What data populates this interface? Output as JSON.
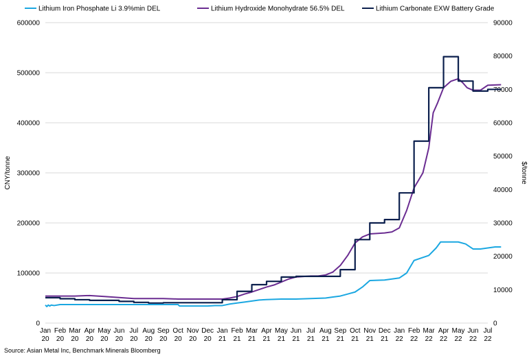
{
  "source_note": "Source: Asian Metal Inc, Benchmark Minerals Bloomberg",
  "chart_data": {
    "type": "line",
    "grid": true,
    "legend_placement": "top",
    "ylabel_left": "CNY/tonne",
    "ylabel_right": "$/tonne",
    "ylim_left": [
      0,
      600000
    ],
    "ylim_right": [
      0,
      90000
    ],
    "y_ticks_left": [
      0,
      100000,
      200000,
      300000,
      400000,
      500000,
      600000
    ],
    "y_ticks_right": [
      0,
      10000,
      20000,
      30000,
      40000,
      50000,
      60000,
      70000,
      80000,
      90000
    ],
    "x_tick_labels": [
      [
        "Jan",
        "20"
      ],
      [
        "Feb",
        "20"
      ],
      [
        "Mar",
        "20"
      ],
      [
        "Apr",
        "20"
      ],
      [
        "May",
        "20"
      ],
      [
        "Jun",
        "20"
      ],
      [
        "Jul",
        "20"
      ],
      [
        "Aug",
        "20"
      ],
      [
        "Sep",
        "20"
      ],
      [
        "Oct",
        "20"
      ],
      [
        "Nov",
        "20"
      ],
      [
        "Dec",
        "20"
      ],
      [
        "Jan",
        "21"
      ],
      [
        "Feb",
        "21"
      ],
      [
        "Mar",
        "21"
      ],
      [
        "Apr",
        "21"
      ],
      [
        "May",
        "21"
      ],
      [
        "Jun",
        "21"
      ],
      [
        "Jul",
        "21"
      ],
      [
        "Aug",
        "21"
      ],
      [
        "Sep",
        "21"
      ],
      [
        "Oct",
        "21"
      ],
      [
        "Nov",
        "21"
      ],
      [
        "Dec",
        "21"
      ],
      [
        "Jan",
        "22"
      ],
      [
        "Feb",
        "22"
      ],
      [
        "Mar",
        "22"
      ],
      [
        "Apr",
        "22"
      ],
      [
        "May",
        "22"
      ],
      [
        "Jun",
        "22"
      ],
      [
        "Jul",
        "22"
      ]
    ],
    "series": [
      {
        "name": "Lithium Iron Phosphate Li 3.9%min DEL",
        "color": "#1aa7e1",
        "axis": "left",
        "points": [
          [
            0,
            36000
          ],
          [
            0.1,
            33000
          ],
          [
            0.2,
            36000
          ],
          [
            0.3,
            34000
          ],
          [
            0.4,
            36000
          ],
          [
            0.6,
            35000
          ],
          [
            1,
            37000
          ],
          [
            3,
            37000
          ],
          [
            6,
            37000
          ],
          [
            9,
            37000
          ],
          [
            9.1,
            34000
          ],
          [
            11,
            34000
          ],
          [
            11.5,
            35000
          ],
          [
            12,
            35000
          ],
          [
            12.5,
            38000
          ],
          [
            13,
            40000
          ],
          [
            13.5,
            42000
          ],
          [
            14,
            44000
          ],
          [
            14.5,
            46000
          ],
          [
            15,
            47000
          ],
          [
            16,
            48000
          ],
          [
            17,
            48000
          ],
          [
            18,
            49000
          ],
          [
            19,
            50000
          ],
          [
            19.5,
            52000
          ],
          [
            20,
            54000
          ],
          [
            20.5,
            58000
          ],
          [
            21,
            62000
          ],
          [
            21.5,
            72000
          ],
          [
            22,
            85000
          ],
          [
            23,
            86000
          ],
          [
            24,
            90000
          ],
          [
            24.5,
            100000
          ],
          [
            24.8,
            115000
          ],
          [
            25,
            125000
          ],
          [
            25.5,
            130000
          ],
          [
            26,
            135000
          ],
          [
            26.5,
            150000
          ],
          [
            26.8,
            162000
          ],
          [
            28,
            162000
          ],
          [
            28.5,
            158000
          ],
          [
            29,
            148000
          ],
          [
            29.5,
            148000
          ],
          [
            30,
            150000
          ],
          [
            30.5,
            152000
          ],
          [
            30.9,
            152000
          ]
        ]
      },
      {
        "name": "Lithium Hydroxide Monohydrate 56.5% DEL",
        "color": "#6a2c91",
        "axis": "left",
        "points": [
          [
            0,
            54000
          ],
          [
            2,
            54000
          ],
          [
            3,
            55000
          ],
          [
            4,
            53000
          ],
          [
            5,
            51000
          ],
          [
            6,
            49000
          ],
          [
            8,
            49000
          ],
          [
            9,
            48000
          ],
          [
            10,
            48000
          ],
          [
            12,
            48000
          ],
          [
            12.5,
            50000
          ],
          [
            13,
            53000
          ],
          [
            13.5,
            58000
          ],
          [
            14,
            62000
          ],
          [
            14.5,
            67000
          ],
          [
            15,
            72000
          ],
          [
            15.5,
            76000
          ],
          [
            16,
            82000
          ],
          [
            16.5,
            88000
          ],
          [
            17,
            92000
          ],
          [
            17.5,
            93000
          ],
          [
            18,
            94000
          ],
          [
            18.5,
            94000
          ],
          [
            19,
            96000
          ],
          [
            19.5,
            102000
          ],
          [
            20,
            115000
          ],
          [
            20.5,
            135000
          ],
          [
            21,
            160000
          ],
          [
            21.5,
            172000
          ],
          [
            22,
            178000
          ],
          [
            23,
            180000
          ],
          [
            23.5,
            182000
          ],
          [
            24,
            190000
          ],
          [
            24.5,
            225000
          ],
          [
            25,
            270000
          ],
          [
            25.3,
            285000
          ],
          [
            25.6,
            300000
          ],
          [
            26,
            350000
          ],
          [
            26.3,
            420000
          ],
          [
            26.6,
            440000
          ],
          [
            27,
            470000
          ],
          [
            27.5,
            483000
          ],
          [
            28,
            488000
          ],
          [
            28.3,
            480000
          ],
          [
            28.6,
            470000
          ],
          [
            29,
            465000
          ],
          [
            29.5,
            465000
          ],
          [
            30,
            475000
          ],
          [
            30.9,
            476000
          ]
        ]
      },
      {
        "name": "Lithium Carbonate EXW Battery Grade",
        "color": "#0b1f4d",
        "axis": "right",
        "points": [
          [
            0,
            7600
          ],
          [
            1,
            7600
          ],
          [
            1,
            7300
          ],
          [
            2,
            7300
          ],
          [
            2,
            7000
          ],
          [
            3,
            7000
          ],
          [
            3,
            6800
          ],
          [
            5,
            6800
          ],
          [
            5,
            6500
          ],
          [
            6,
            6500
          ],
          [
            6,
            6200
          ],
          [
            7,
            6200
          ],
          [
            7,
            6000
          ],
          [
            8,
            6000
          ],
          [
            8,
            6100
          ],
          [
            12,
            6100
          ],
          [
            12,
            7000
          ],
          [
            13,
            7000
          ],
          [
            13,
            9500
          ],
          [
            14,
            9500
          ],
          [
            14,
            11500
          ],
          [
            15,
            11500
          ],
          [
            15,
            12500
          ],
          [
            16,
            12500
          ],
          [
            16,
            13800
          ],
          [
            17,
            13800
          ],
          [
            17,
            14000
          ],
          [
            20,
            14000
          ],
          [
            20,
            16000
          ],
          [
            21,
            16000
          ],
          [
            21,
            25000
          ],
          [
            22,
            25000
          ],
          [
            22,
            30000
          ],
          [
            23,
            30000
          ],
          [
            23,
            31000
          ],
          [
            24,
            31000
          ],
          [
            24,
            39000
          ],
          [
            25,
            39000
          ],
          [
            25,
            54500
          ],
          [
            26,
            54500
          ],
          [
            26,
            70500
          ],
          [
            27,
            70500
          ],
          [
            27,
            79800
          ],
          [
            28,
            79800
          ],
          [
            28,
            72500
          ],
          [
            29,
            72500
          ],
          [
            29,
            69500
          ],
          [
            30,
            69500
          ],
          [
            30,
            70000
          ],
          [
            30.9,
            70000
          ]
        ]
      }
    ]
  }
}
